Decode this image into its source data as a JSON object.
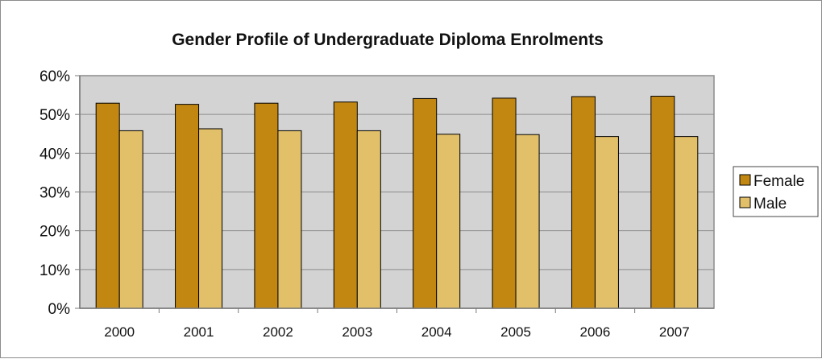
{
  "chart_data": {
    "type": "bar",
    "title": "Gender Profile of Undergraduate Diploma Enrolments",
    "xlabel": "",
    "ylabel": "",
    "categories": [
      "2000",
      "2001",
      "2002",
      "2003",
      "2004",
      "2005",
      "2006",
      "2007"
    ],
    "series": [
      {
        "name": "Female",
        "values": [
          52.9,
          52.6,
          52.9,
          53.2,
          54.1,
          54.2,
          54.6,
          54.7
        ],
        "color": "#c28711"
      },
      {
        "name": "Male",
        "values": [
          45.8,
          46.3,
          45.8,
          45.8,
          44.9,
          44.8,
          44.3,
          44.3
        ],
        "color": "#e2c06a"
      }
    ],
    "ylim": [
      0,
      60
    ],
    "yticks": [
      "0%",
      "10%",
      "20%",
      "30%",
      "40%",
      "50%",
      "60%"
    ],
    "grid": true,
    "plot_background": "#d3d3d3",
    "legend_position": "right"
  }
}
